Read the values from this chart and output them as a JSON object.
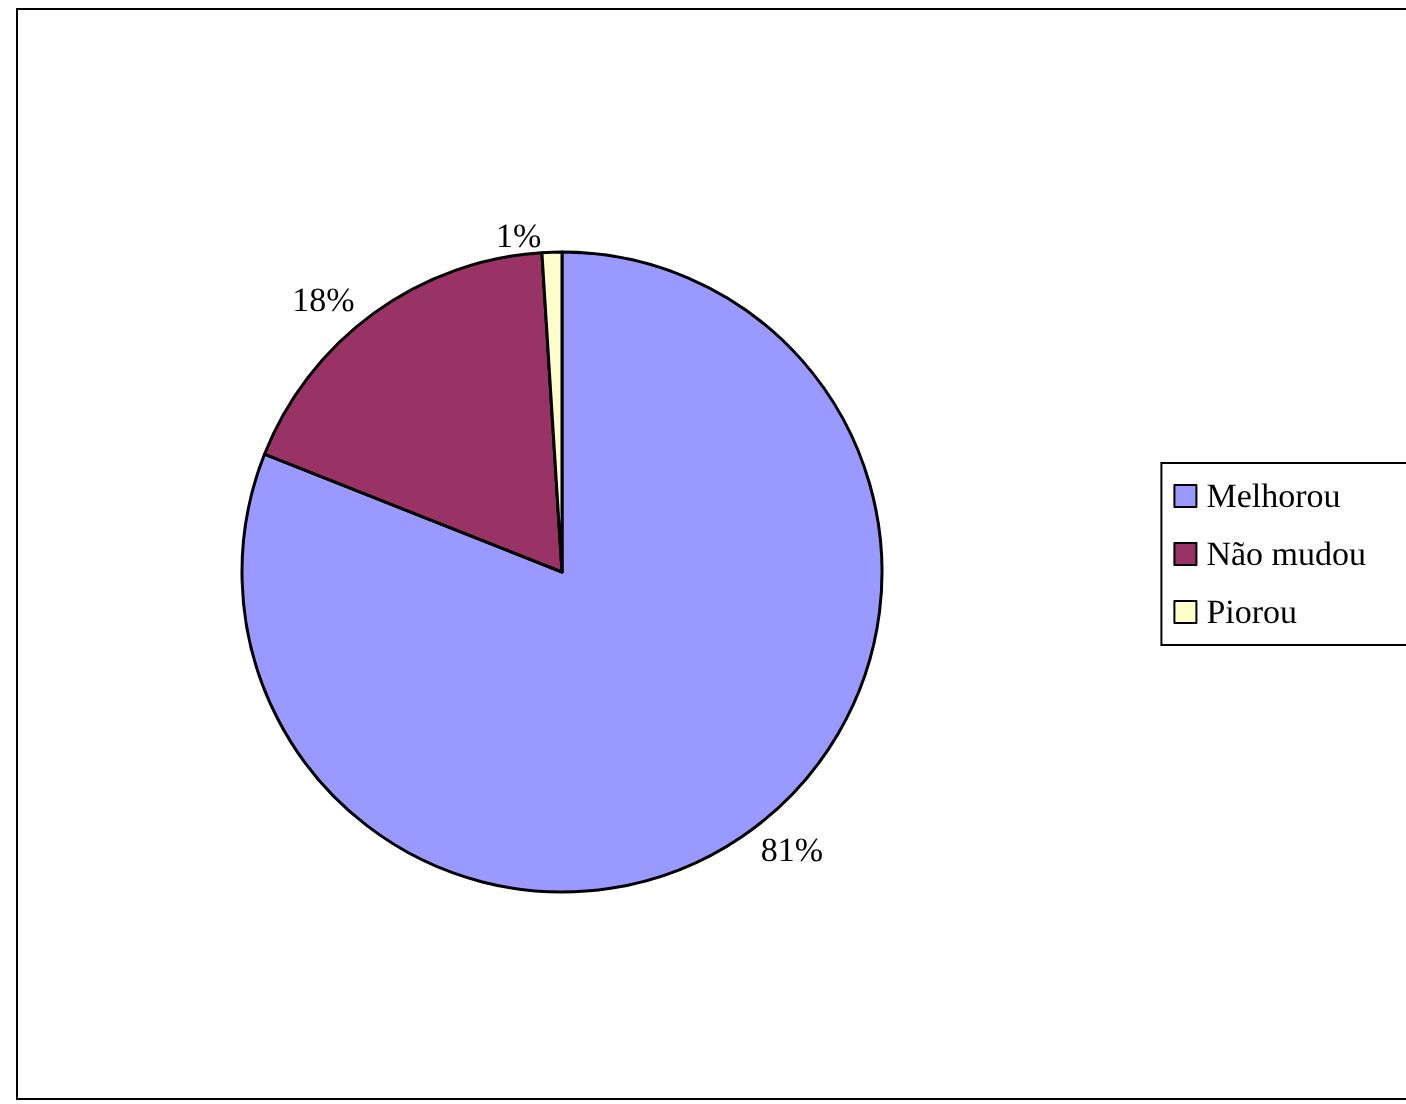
{
  "chart_data": {
    "type": "pie",
    "categories": [
      "Melhorou",
      "Não mudou",
      "Piorou"
    ],
    "values": [
      81,
      18,
      1
    ],
    "colors": [
      "#9999ff",
      "#993366",
      "#ffffcc"
    ],
    "value_labels": [
      "81%",
      "18%",
      "1%"
    ],
    "legend": "right"
  }
}
